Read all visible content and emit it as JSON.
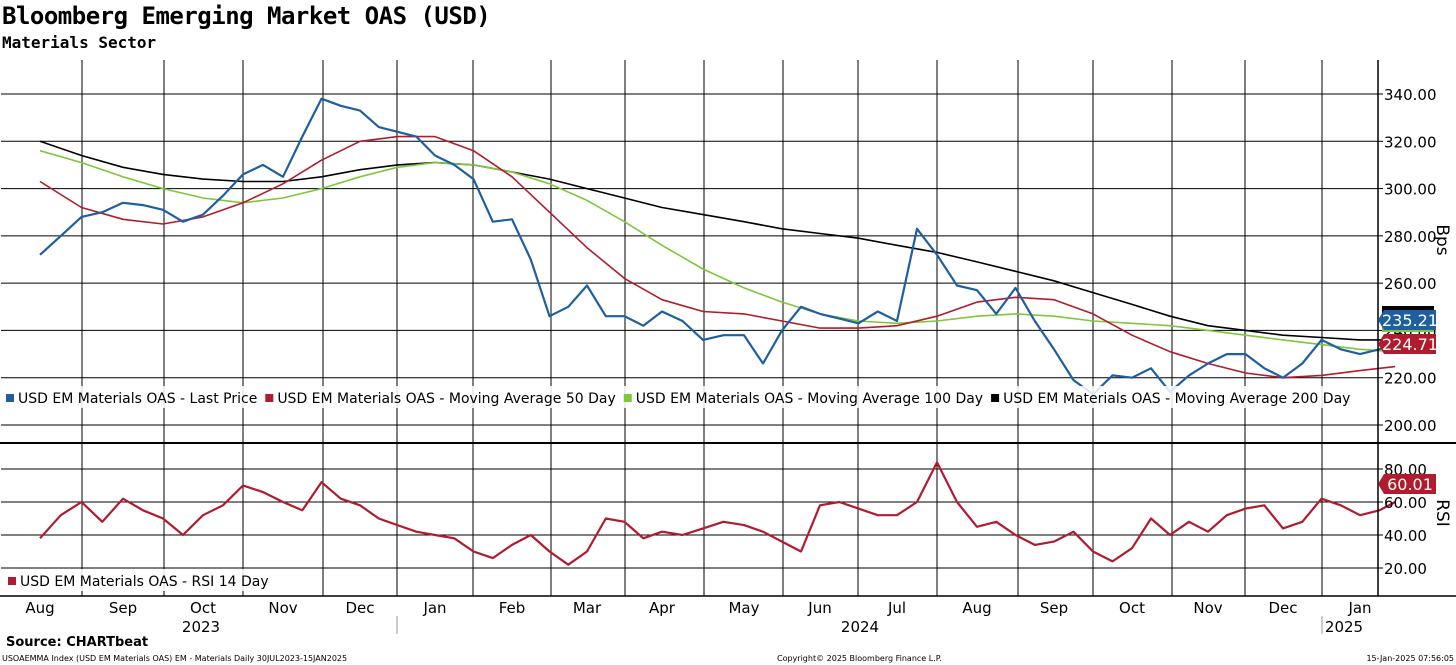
{
  "header": {
    "title": "Bloomberg Emerging Market OAS (USD)",
    "subtitle": "Materials Sector"
  },
  "footer": {
    "source": "Source: CHARTbeat",
    "left": "USOAEMMA Index (USD EM Materials OAS) EM - Materials  Daily 30JUL2023-15JAN2025",
    "copyright": "Copyright© 2025 Bloomberg Finance L.P.",
    "timestamp": "15-Jan-2025 07:56:05"
  },
  "colors": {
    "last_price": "#1f5fa0",
    "ma50": "#b01c2e",
    "ma100": "#7ec73a",
    "ma200": "#000000",
    "rsi": "#b01c2e"
  },
  "chart_data": [
    {
      "type": "line",
      "panel": "top",
      "ylabel": "Bps",
      "ylim": [
        195,
        350
      ],
      "yticks": [
        "200.00",
        "220.00",
        "240.00",
        "260.00",
        "280.00",
        "300.00",
        "320.00",
        "340.00"
      ],
      "legend": [
        "USD EM Materials OAS - Last Price",
        "USD EM Materials OAS - Moving Average 50 Day",
        "USD EM Materials OAS - Moving Average 100 Day",
        "USD EM Materials OAS - Moving Average 200 Day"
      ],
      "last_value_labels": [
        {
          "text": "235.21",
          "color": "#1f5fa0"
        },
        {
          "text": "224.71",
          "color": "#b01c2e"
        }
      ],
      "x_months": [
        "2023-08",
        "2023-09",
        "2023-10",
        "2023-11",
        "2023-12",
        "2024-01",
        "2024-02",
        "2024-03",
        "2024-04",
        "2024-05",
        "2024-06",
        "2024-07",
        "2024-08",
        "2024-09",
        "2024-10",
        "2024-11",
        "2024-12",
        "2025-01"
      ],
      "series": [
        {
          "name": "USD EM Materials OAS - Last Price",
          "key": "last_price",
          "x": [
            0.0,
            0.25,
            0.5,
            0.75,
            1.0,
            1.25,
            1.5,
            1.75,
            2.0,
            2.25,
            2.5,
            2.75,
            3.0,
            3.25,
            3.5,
            3.75,
            4.0,
            4.25,
            4.5,
            4.75,
            5.0,
            5.25,
            5.5,
            5.75,
            6.0,
            6.25,
            6.5,
            6.75,
            7.0,
            7.25,
            7.5,
            7.75,
            8.0,
            8.25,
            8.5,
            8.75,
            9.0,
            9.25,
            9.5,
            9.75,
            10.0,
            10.25,
            10.5,
            10.75,
            11.0,
            11.25,
            11.5,
            11.75,
            12.0,
            12.25,
            12.5,
            12.75,
            13.0,
            13.25,
            13.5,
            13.75,
            14.0,
            14.25,
            14.5,
            14.75,
            15.0,
            15.25,
            15.5,
            15.75,
            16.0,
            16.25,
            16.5,
            16.75,
            17.0,
            17.25,
            17.45
          ],
          "values": [
            272,
            280,
            288,
            290,
            294,
            293,
            291,
            286,
            289,
            297,
            306,
            310,
            305,
            322,
            338,
            335,
            333,
            326,
            324,
            322,
            314,
            310,
            304,
            286,
            287,
            270,
            246,
            250,
            259,
            246,
            246,
            242,
            248,
            244,
            236,
            238,
            238,
            226,
            240,
            250,
            247,
            245,
            243,
            248,
            244,
            283,
            272,
            259,
            257,
            247,
            258,
            244,
            232,
            219,
            213,
            221,
            220,
            224,
            214,
            221,
            226,
            230,
            230,
            224,
            220,
            226,
            236,
            232,
            230,
            232,
            235.21
          ]
        },
        {
          "name": "USD EM Materials OAS - Moving Average 50 Day",
          "key": "ma50",
          "x": [
            0.0,
            0.5,
            1.0,
            1.5,
            2.0,
            2.5,
            3.0,
            3.5,
            4.0,
            4.5,
            5.0,
            5.5,
            6.0,
            6.5,
            7.0,
            7.5,
            8.0,
            8.5,
            9.0,
            9.5,
            10.0,
            10.5,
            11.0,
            11.5,
            12.0,
            12.5,
            13.0,
            13.5,
            14.0,
            14.5,
            15.0,
            15.5,
            16.0,
            16.5,
            17.0,
            17.45
          ],
          "values": [
            303,
            292,
            287,
            285,
            288,
            294,
            302,
            312,
            320,
            322,
            322,
            316,
            305,
            290,
            275,
            262,
            253,
            248,
            247,
            244,
            241,
            241,
            242,
            246,
            252,
            254,
            253,
            247,
            238,
            231,
            226,
            222,
            220,
            221,
            223,
            224.71
          ]
        },
        {
          "name": "USD EM Materials OAS - Moving Average 100 Day",
          "key": "ma100",
          "x": [
            0.0,
            0.5,
            1.0,
            1.5,
            2.0,
            2.5,
            3.0,
            3.5,
            4.0,
            4.5,
            5.0,
            5.5,
            6.0,
            6.5,
            7.0,
            7.5,
            8.0,
            8.5,
            9.0,
            9.5,
            10.0,
            10.5,
            11.0,
            11.5,
            12.0,
            12.5,
            13.0,
            13.5,
            14.0,
            14.5,
            15.0,
            15.5,
            16.0,
            16.5,
            17.0,
            17.45
          ],
          "values": [
            316,
            311,
            305,
            300,
            296,
            294,
            296,
            300,
            305,
            309,
            311,
            310,
            307,
            302,
            295,
            286,
            276,
            266,
            258,
            252,
            247,
            244,
            243,
            244,
            246,
            247,
            246,
            244,
            243,
            242,
            240,
            238,
            236,
            234,
            232,
            231
          ]
        },
        {
          "name": "USD EM Materials OAS - Moving Average 200 Day",
          "key": "ma200",
          "x": [
            0.0,
            0.5,
            1.0,
            1.5,
            2.0,
            2.5,
            3.0,
            3.5,
            4.0,
            4.5,
            5.0,
            5.5,
            6.0,
            6.5,
            7.0,
            7.5,
            8.0,
            8.5,
            9.0,
            9.5,
            10.0,
            10.5,
            11.0,
            11.5,
            12.0,
            12.5,
            13.0,
            13.5,
            14.0,
            14.5,
            15.0,
            15.5,
            16.0,
            16.5,
            17.0,
            17.45
          ],
          "values": [
            320,
            314,
            309,
            306,
            304,
            303,
            303,
            305,
            308,
            310,
            311,
            310,
            307,
            304,
            300,
            296,
            292,
            289,
            286,
            283,
            281,
            279,
            276,
            273,
            269,
            265,
            261,
            256,
            251,
            246,
            242,
            240,
            238,
            237,
            236,
            236
          ]
        }
      ]
    },
    {
      "type": "line",
      "panel": "bottom",
      "ylabel": "RSI",
      "ylim": [
        10,
        90
      ],
      "yticks": [
        "20.00",
        "40.00",
        "60.00",
        "80.00"
      ],
      "legend": [
        "USD EM Materials OAS - RSI 14 Day"
      ],
      "last_value_labels": [
        {
          "text": "60.01",
          "color": "#b01c2e"
        }
      ],
      "series": [
        {
          "name": "USD EM Materials OAS - RSI 14 Day",
          "key": "rsi",
          "x": [
            0.0,
            0.25,
            0.5,
            0.75,
            1.0,
            1.25,
            1.5,
            1.75,
            2.0,
            2.25,
            2.5,
            2.75,
            3.0,
            3.25,
            3.5,
            3.75,
            4.0,
            4.25,
            4.5,
            4.75,
            5.0,
            5.25,
            5.5,
            5.75,
            6.0,
            6.25,
            6.5,
            6.75,
            7.0,
            7.25,
            7.5,
            7.75,
            8.0,
            8.25,
            8.5,
            8.75,
            9.0,
            9.25,
            9.5,
            9.75,
            10.0,
            10.25,
            10.5,
            10.75,
            11.0,
            11.25,
            11.5,
            11.75,
            12.0,
            12.25,
            12.5,
            12.75,
            13.0,
            13.25,
            13.5,
            13.75,
            14.0,
            14.25,
            14.5,
            14.75,
            15.0,
            15.25,
            15.5,
            15.75,
            16.0,
            16.25,
            16.5,
            16.75,
            17.0,
            17.25,
            17.45
          ],
          "values": [
            38,
            52,
            60,
            48,
            62,
            55,
            50,
            40,
            52,
            58,
            70,
            66,
            60,
            55,
            72,
            62,
            58,
            50,
            46,
            42,
            40,
            38,
            30,
            26,
            34,
            40,
            30,
            22,
            30,
            50,
            48,
            38,
            42,
            40,
            44,
            48,
            46,
            42,
            36,
            30,
            58,
            60,
            56,
            52,
            52,
            60,
            84,
            60,
            45,
            48,
            40,
            34,
            36,
            42,
            30,
            24,
            32,
            50,
            40,
            48,
            42,
            52,
            56,
            58,
            44,
            48,
            62,
            58,
            52,
            55,
            60.01
          ]
        }
      ]
    }
  ],
  "x_axis": {
    "months": [
      "Aug",
      "Sep",
      "Oct",
      "Nov",
      "Dec",
      "Jan",
      "Feb",
      "Mar",
      "Apr",
      "May",
      "Jun",
      "Jul",
      "Aug",
      "Sep",
      "Oct",
      "Nov",
      "Dec",
      "Jan"
    ],
    "years": [
      "2023",
      "2024",
      "2025"
    ]
  }
}
